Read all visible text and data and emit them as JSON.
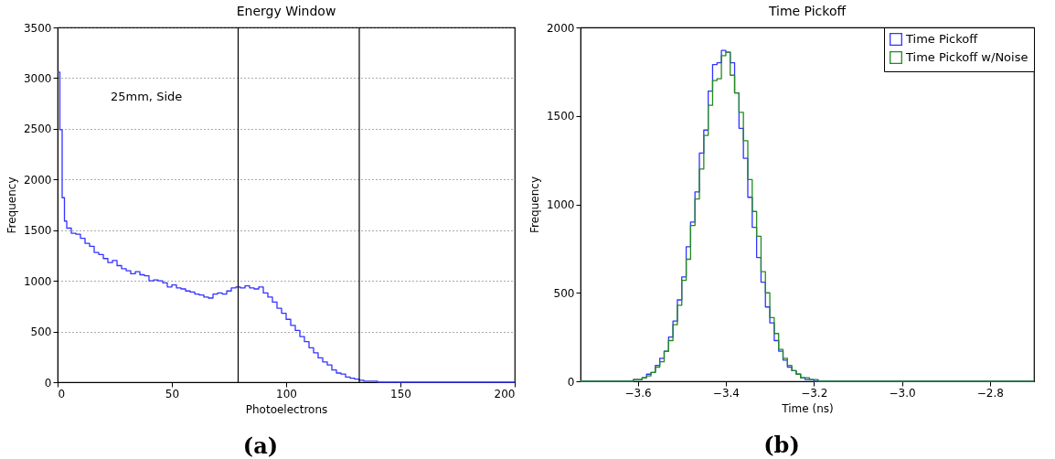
{
  "chart_data": [
    {
      "type": "histogram",
      "title": "Energy Window",
      "xlabel": "Photoelectrons",
      "ylabel": "Frequency",
      "xlim": [
        0,
        200
      ],
      "xticks": [
        0,
        50,
        100,
        150,
        200
      ],
      "ylim": [
        0,
        3500
      ],
      "yticks": [
        0,
        500,
        1000,
        1500,
        2000,
        2500,
        3000,
        3500
      ],
      "grid": "y",
      "bins": [
        0,
        1,
        2,
        3,
        4,
        6,
        8,
        10,
        12,
        14,
        16,
        18,
        20,
        22,
        24,
        26,
        28,
        30,
        32,
        34,
        36,
        38,
        40,
        42,
        44,
        46,
        48,
        50,
        52,
        54,
        56,
        58,
        60,
        62,
        64,
        66,
        68,
        70,
        72,
        74,
        76,
        78,
        80,
        82,
        84,
        86,
        88,
        90,
        92,
        94,
        96,
        98,
        100,
        102,
        104,
        106,
        108,
        110,
        112,
        114,
        116,
        118,
        120,
        122,
        124,
        126,
        128,
        130,
        132,
        134,
        140,
        200
      ],
      "series": [
        {
          "color": "#3333ff",
          "values": [
            3060,
            2490,
            1820,
            1590,
            1520,
            1470,
            1460,
            1420,
            1370,
            1340,
            1280,
            1260,
            1220,
            1180,
            1200,
            1150,
            1120,
            1100,
            1070,
            1090,
            1060,
            1050,
            1000,
            1010,
            1000,
            980,
            940,
            960,
            930,
            920,
            900,
            890,
            870,
            860,
            840,
            830,
            870,
            880,
            870,
            900,
            930,
            940,
            930,
            950,
            930,
            920,
            940,
            880,
            840,
            790,
            730,
            680,
            620,
            560,
            510,
            450,
            400,
            340,
            290,
            240,
            200,
            170,
            120,
            90,
            80,
            50,
            40,
            30,
            20,
            10,
            0
          ]
        }
      ],
      "ref_lines": [
        {
          "axis": "x",
          "value": 79,
          "color": "#000000"
        },
        {
          "axis": "x",
          "value": 132,
          "color": "#000000"
        }
      ],
      "annotations": [
        "25mm, Side",
        "(a)"
      ]
    },
    {
      "type": "histogram",
      "title": "Time Pickoff",
      "xlabel": "Time (ns)",
      "ylabel": "Frequency",
      "xlim": [
        -3.73,
        -2.7
      ],
      "xticks": [
        {
          "value": -3.6,
          "label": "−3.6"
        },
        {
          "value": -3.4,
          "label": "−3.4"
        },
        {
          "value": -3.2,
          "label": "−3.2"
        },
        {
          "value": -3.0,
          "label": "−3.0"
        },
        {
          "value": -2.8,
          "label": "−2.8"
        }
      ],
      "ylim": [
        0,
        2000
      ],
      "yticks": [
        0,
        500,
        1000,
        1500,
        2000
      ],
      "legend": "top right",
      "bins": [
        -3.73,
        -3.62,
        -3.61,
        -3.6,
        -3.59,
        -3.58,
        -3.57,
        -3.56,
        -3.55,
        -3.54,
        -3.53,
        -3.52,
        -3.51,
        -3.5,
        -3.49,
        -3.48,
        -3.47,
        -3.46,
        -3.45,
        -3.44,
        -3.43,
        -3.42,
        -3.41,
        -3.4,
        -3.39,
        -3.38,
        -3.37,
        -3.36,
        -3.35,
        -3.34,
        -3.33,
        -3.32,
        -3.31,
        -3.3,
        -3.29,
        -3.28,
        -3.27,
        -3.26,
        -3.25,
        -3.24,
        -3.23,
        -3.22,
        -3.21,
        -3.2,
        -3.19,
        -3.18,
        -3.17,
        -3.16,
        -2.7
      ],
      "series": [
        {
          "name": "Time Pickoff",
          "color": "#3333ff",
          "values": [
            0,
            0,
            10,
            10,
            20,
            40,
            50,
            90,
            130,
            170,
            250,
            340,
            460,
            590,
            760,
            900,
            1070,
            1290,
            1420,
            1640,
            1790,
            1800,
            1870,
            1860,
            1800,
            1630,
            1430,
            1260,
            1040,
            870,
            700,
            560,
            420,
            330,
            230,
            170,
            120,
            80,
            60,
            40,
            20,
            10,
            10,
            0,
            0,
            0,
            0,
            0
          ]
        },
        {
          "name": "Time Pickoff w/Noise",
          "color": "#228b22",
          "values": [
            0,
            0,
            10,
            10,
            20,
            30,
            50,
            80,
            110,
            170,
            230,
            320,
            430,
            570,
            690,
            880,
            1030,
            1200,
            1390,
            1560,
            1700,
            1710,
            1840,
            1860,
            1730,
            1630,
            1520,
            1360,
            1140,
            960,
            820,
            620,
            500,
            360,
            270,
            180,
            130,
            90,
            60,
            40,
            20,
            20,
            10,
            10,
            0,
            0,
            0,
            0
          ]
        }
      ],
      "annotations": [
        "(b)"
      ]
    }
  ]
}
